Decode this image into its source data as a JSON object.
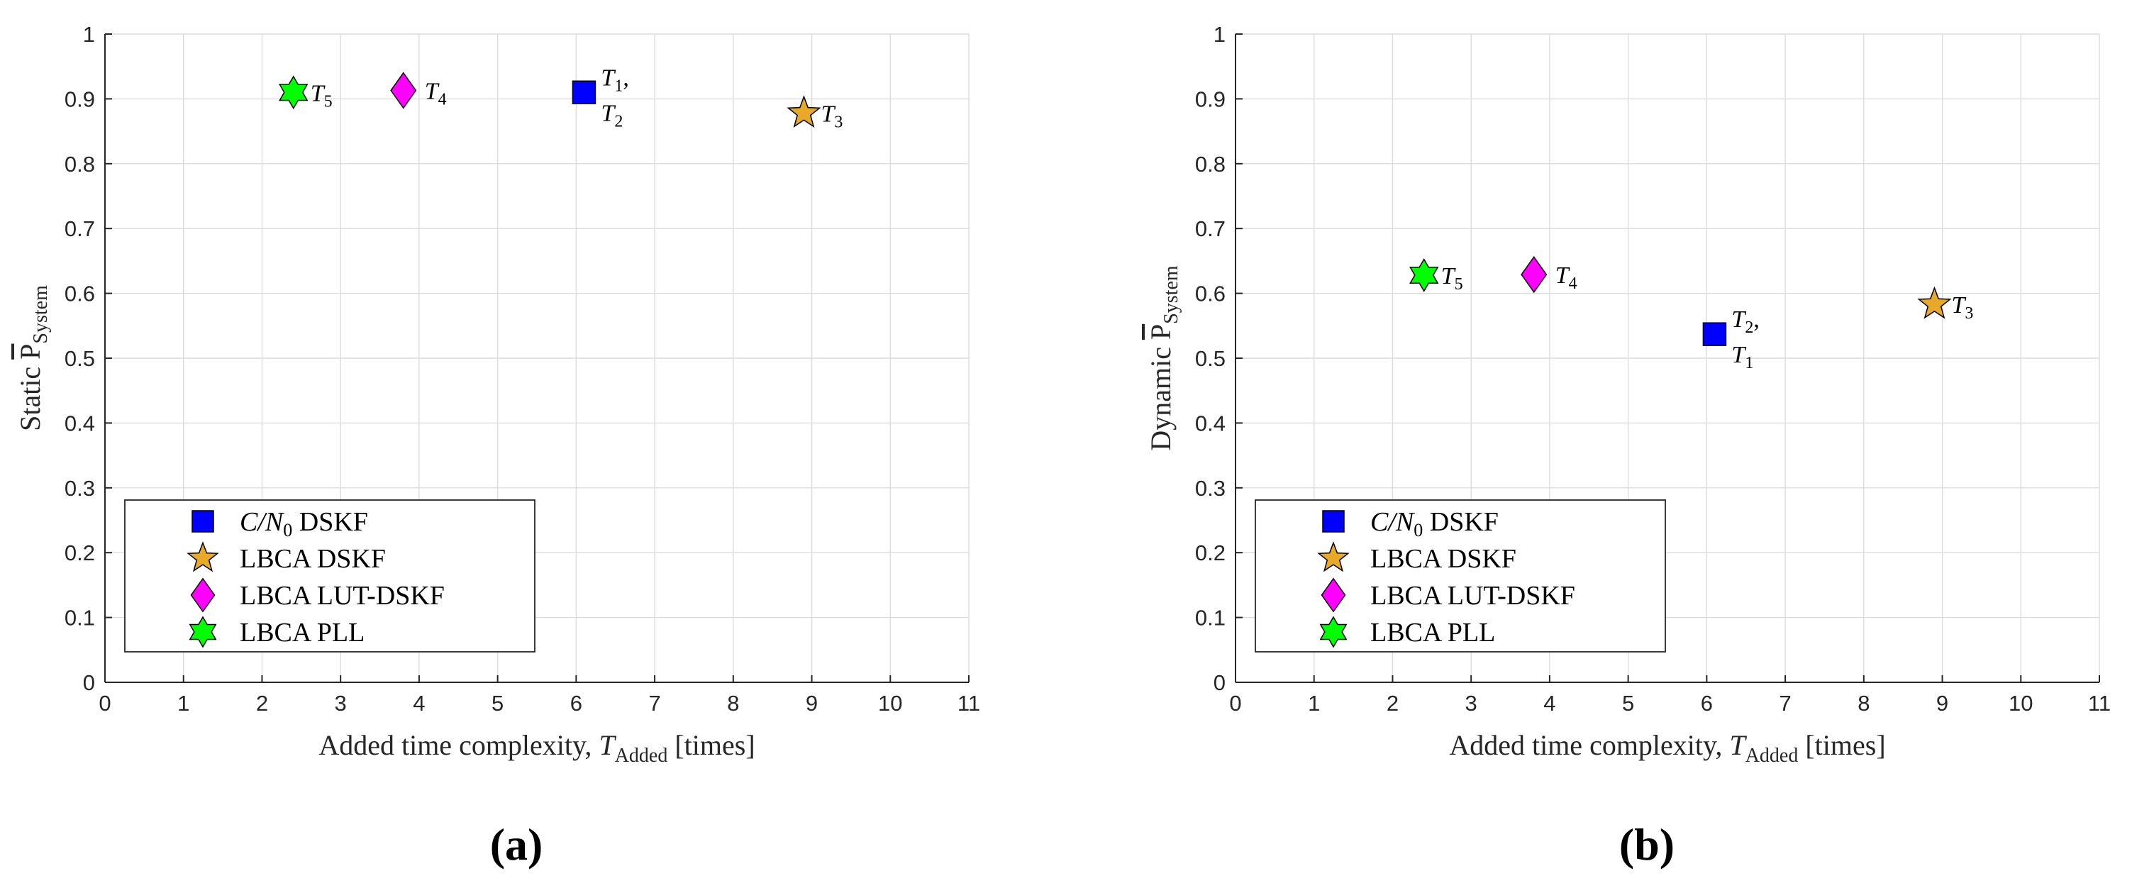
{
  "chart_data": [
    {
      "type": "scatter",
      "panel_label": "(a)",
      "ylabel": {
        "prefix": "Static ",
        "main": "P",
        "sub": "System"
      },
      "xlabel": {
        "before": "Added time complexity, ",
        "var": "T",
        "sub": "Added",
        "after": " [times]"
      },
      "xlim": [
        0,
        11
      ],
      "ylim": [
        0,
        1
      ],
      "xticks": [
        "0",
        "1",
        "2",
        "3",
        "4",
        "5",
        "6",
        "7",
        "8",
        "9",
        "10",
        "11"
      ],
      "yticks": [
        "0",
        "0.1",
        "0.2",
        "0.3",
        "0.4",
        "0.5",
        "0.6",
        "0.7",
        "0.8",
        "0.9",
        "1"
      ],
      "grid": true,
      "legend_position": "lower-left",
      "series": [
        {
          "name": "C/N0 DSKF",
          "marker": "square",
          "color": "#0000ff",
          "x": 6.1,
          "y": 0.91,
          "labels": [
            "T1,",
            "T2"
          ]
        },
        {
          "name": "LBCA DSKF",
          "marker": "star",
          "color": "#e8a828",
          "x": 8.9,
          "y": 0.878,
          "labels": [
            "T3"
          ]
        },
        {
          "name": "LBCA LUT-DSKF",
          "marker": "diamond",
          "color": "#ff00ff",
          "x": 3.8,
          "y": 0.913,
          "labels": [
            "T4"
          ]
        },
        {
          "name": "LBCA PLL",
          "marker": "hexagram",
          "color": "#00ff00",
          "x": 2.4,
          "y": 0.91,
          "labels": [
            "T5"
          ]
        }
      ]
    },
    {
      "type": "scatter",
      "panel_label": "(b)",
      "ylabel": {
        "prefix": "Dynamic ",
        "main": "P",
        "sub": "System"
      },
      "xlabel": {
        "before": "Added time complexity, ",
        "var": "T",
        "sub": "Added",
        "after": " [times]"
      },
      "xlim": [
        0,
        11
      ],
      "ylim": [
        0,
        1
      ],
      "xticks": [
        "0",
        "1",
        "2",
        "3",
        "4",
        "5",
        "6",
        "7",
        "8",
        "9",
        "10",
        "11"
      ],
      "yticks": [
        "0",
        "0.1",
        "0.2",
        "0.3",
        "0.4",
        "0.5",
        "0.6",
        "0.7",
        "0.8",
        "0.9",
        "1"
      ],
      "grid": true,
      "legend_position": "lower-left",
      "series": [
        {
          "name": "C/N0 DSKF",
          "marker": "square",
          "color": "#0000ff",
          "x": 6.1,
          "y": 0.537,
          "labels": [
            "T2,",
            "T1"
          ]
        },
        {
          "name": "LBCA DSKF",
          "marker": "star",
          "color": "#e8a828",
          "x": 8.9,
          "y": 0.583,
          "labels": [
            "T3"
          ]
        },
        {
          "name": "LBCA LUT-DSKF",
          "marker": "diamond",
          "color": "#ff00ff",
          "x": 3.8,
          "y": 0.629,
          "labels": [
            "T4"
          ]
        },
        {
          "name": "LBCA PLL",
          "marker": "hexagram",
          "color": "#00ff00",
          "x": 2.4,
          "y": 0.628,
          "labels": [
            "T5"
          ]
        }
      ]
    }
  ]
}
